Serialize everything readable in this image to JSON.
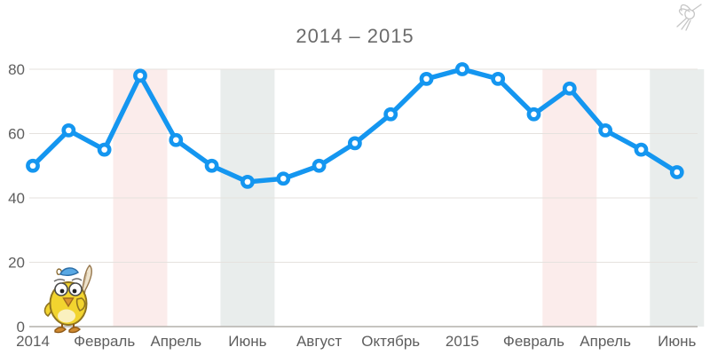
{
  "title": "2014 – 2015",
  "chart_data": {
    "type": "line",
    "title": "2014 – 2015",
    "xlabel": "",
    "ylabel": "",
    "x_tick_labels": [
      "2014",
      "Февраль",
      "Апрель",
      "Июнь",
      "Август",
      "Октябрь",
      "2015",
      "Февраль",
      "Апрель",
      "Июнь"
    ],
    "x_tick_every": 2,
    "values": [
      50,
      61,
      55,
      78,
      58,
      50,
      45,
      46,
      50,
      57,
      66,
      77,
      80,
      77,
      66,
      74,
      61,
      55,
      48
    ],
    "y_ticks": [
      0,
      20,
      40,
      60,
      80
    ],
    "ylim": [
      0,
      80
    ],
    "grid": true,
    "legend_position": "none",
    "line_color": "#1496f0",
    "marker_style": "open-circle",
    "grid_color": "#e5e2de",
    "axis_color": "#b4b0ac",
    "tick_label_color": "#5e5e5e",
    "title_color": "#6b6b6b",
    "bands": [
      {
        "center_index": 3,
        "color": "#fbeceb",
        "kind": "pink-highlight"
      },
      {
        "center_index": 6,
        "color": "#e9edec",
        "kind": "gray-highlight"
      },
      {
        "center_index": 15,
        "color": "#fbeceb",
        "kind": "pink-highlight"
      },
      {
        "center_index": 18,
        "color": "#e9edec",
        "kind": "gray-highlight"
      }
    ]
  },
  "decorations": {
    "mascot": "chick-with-quill",
    "logo": "hummingbird"
  }
}
